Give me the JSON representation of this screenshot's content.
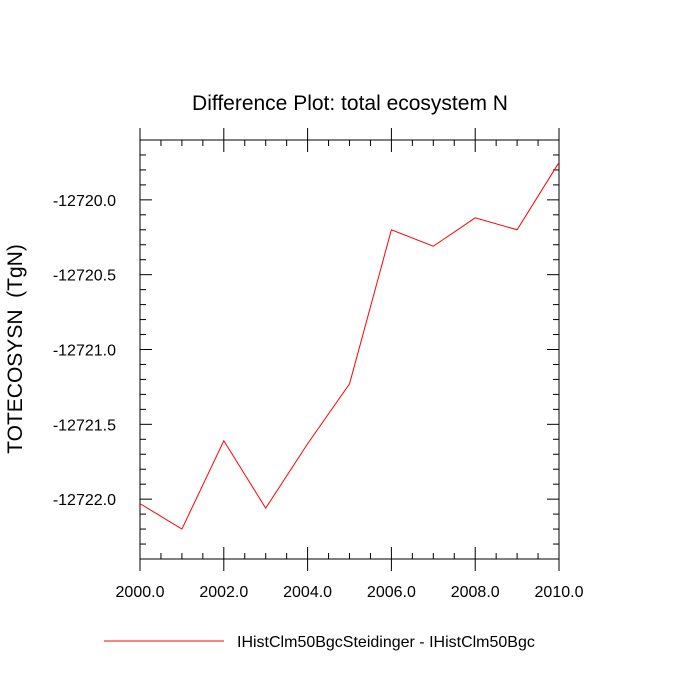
{
  "chart_data": {
    "type": "line",
    "title": "Difference Plot: total ecosystem N",
    "xlabel": "",
    "ylabel": "TOTECOSYSN  (TgN)",
    "xlim": [
      2000.0,
      2010.0
    ],
    "ylim": [
      -12722.4,
      -12719.6
    ],
    "x_ticks": [
      2000.0,
      2002.0,
      2004.0,
      2006.0,
      2008.0,
      2010.0
    ],
    "x_tick_labels": [
      "2000.0",
      "2002.0",
      "2004.0",
      "2006.0",
      "2008.0",
      "2010.0"
    ],
    "y_ticks": [
      -12722.0,
      -12721.5,
      -12721.0,
      -12720.5,
      -12720.0
    ],
    "y_tick_labels": [
      "-12722.0",
      "-12721.5",
      "-12721.0",
      "-12720.5",
      "-12720.0"
    ],
    "grid": false,
    "legend_position": "bottom",
    "series": [
      {
        "name": "IHistClm50BgcSteidinger - IHistClm50Bgc",
        "color": "#ff0000",
        "x": [
          2000,
          2001,
          2002,
          2003,
          2004,
          2005,
          2006,
          2007,
          2008,
          2009,
          2010
        ],
        "y": [
          -12722.03,
          -12722.2,
          -12721.61,
          -12722.06,
          -12721.63,
          -12721.23,
          -12720.2,
          -12720.31,
          -12720.12,
          -12720.2,
          -12719.75
        ]
      }
    ]
  }
}
